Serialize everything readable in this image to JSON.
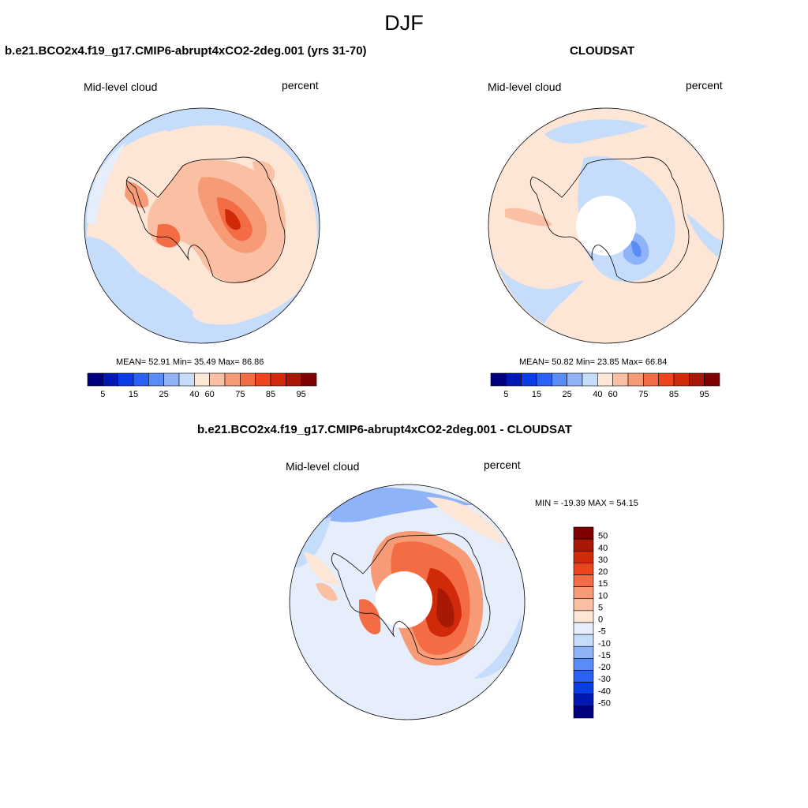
{
  "figure": {
    "title": "DJF"
  },
  "panels": [
    {
      "id": "model",
      "title": "b.e21.BCO2x4.f19_g17.CMIP6-abrupt4xCO2-2deg.001 (yrs 31-70)",
      "left_label": "Mid-level cloud",
      "right_label": "percent",
      "stats": "MEAN=  52.91  Min=  35.49  Max=  86.86",
      "colorbar_ticks": [
        "5",
        "15",
        "25",
        "40",
        "60",
        "75",
        "85",
        "95"
      ]
    },
    {
      "id": "obs",
      "title": "CLOUDSAT",
      "left_label": "Mid-level cloud",
      "right_label": "percent",
      "stats": "MEAN=  50.82  Min=  23.85  Max=  66.84",
      "colorbar_ticks": [
        "5",
        "15",
        "25",
        "40",
        "60",
        "75",
        "85",
        "95"
      ]
    },
    {
      "id": "diff",
      "title": "b.e21.BCO2x4.f19_g17.CMIP6-abrupt4xCO2-2deg.001 - CLOUDSAT",
      "left_label": "Mid-level cloud",
      "right_label": "percent",
      "stats": "MIN = -19.39 MAX =  54.15",
      "colorbar_ticks": [
        "50",
        "40",
        "30",
        "20",
        "15",
        "10",
        "5",
        "0",
        "-5",
        "-10",
        "-15",
        "-20",
        "-30",
        "-40",
        "-50"
      ]
    }
  ],
  "colors": {
    "seq_palette": [
      "#00007f",
      "#0019b3",
      "#0a3de6",
      "#2a62f5",
      "#5a8cf7",
      "#8fb3f8",
      "#c6dcfb",
      "#fde6d6",
      "#fbc0a3",
      "#f79a76",
      "#f36c44",
      "#ee451f",
      "#d02a0b",
      "#a81806",
      "#7f0000"
    ],
    "div_palette": [
      "#7f0000",
      "#a81806",
      "#d02a0b",
      "#ee451f",
      "#f36c44",
      "#f79a76",
      "#fbc0a3",
      "#fde6d6",
      "#e6eefc",
      "#c6dcfb",
      "#8fb3f8",
      "#5a8cf7",
      "#2a62f5",
      "#0a3de6",
      "#0019b3",
      "#00007f"
    ]
  }
}
